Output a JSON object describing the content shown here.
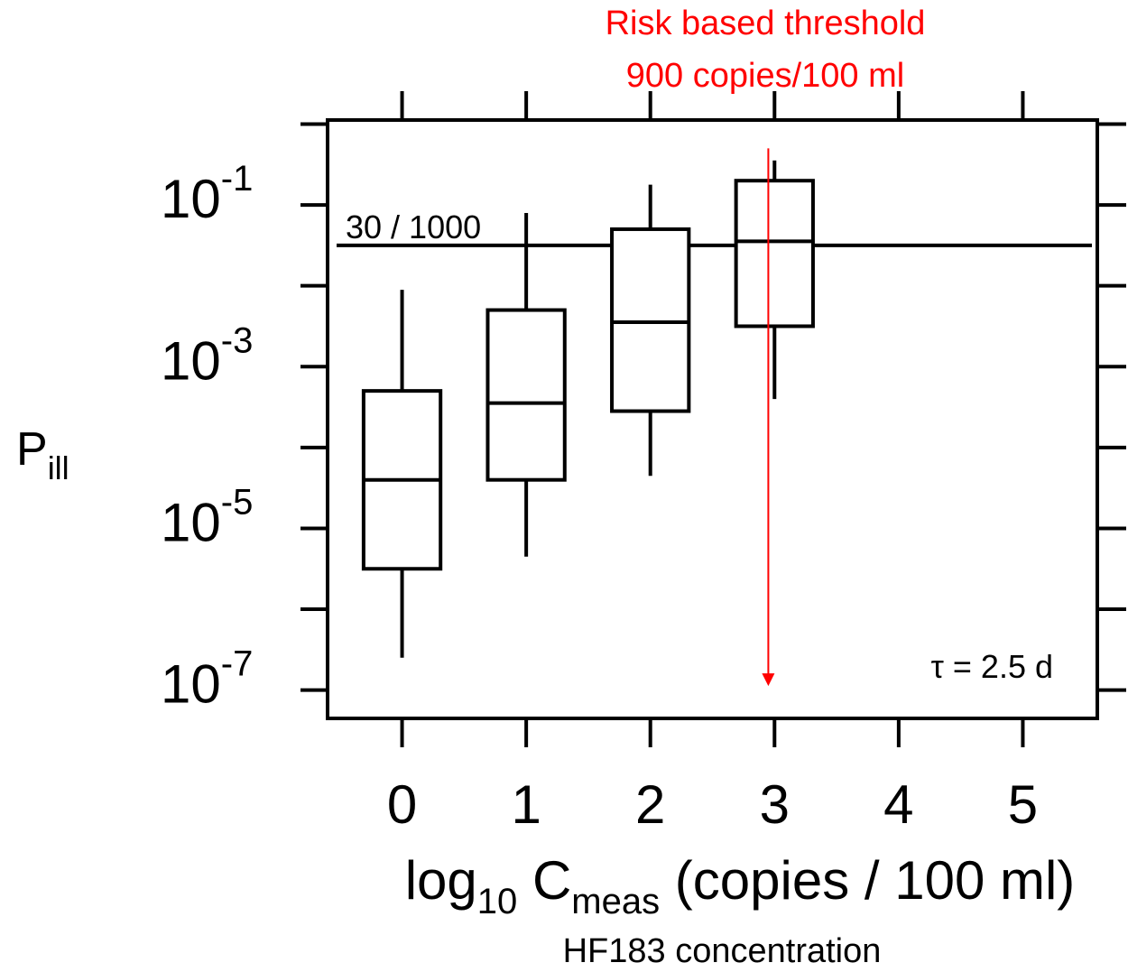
{
  "chart_data": {
    "type": "box",
    "xlim": [
      -0.6,
      5.6
    ],
    "ylim_log10": [
      -7.35,
      0.05
    ],
    "y_log_scale": true,
    "x_ticks": [
      0,
      1,
      2,
      3,
      4,
      5
    ],
    "y_major_ticks_log10": [
      -1,
      -3,
      -5,
      -7
    ],
    "y_minor_ticks_log10": [
      0,
      -2,
      -4,
      -6
    ],
    "y_tick_base": "10",
    "y_tick_exponents": [
      "-1",
      "-3",
      "-5",
      "-7"
    ],
    "boxes": [
      {
        "x": 0,
        "whisker_low": -6.6,
        "q1": -5.5,
        "median": -4.4,
        "q3": -3.3,
        "whisker_high": -2.05
      },
      {
        "x": 1,
        "whisker_low": -5.35,
        "q1": -4.4,
        "median": -3.45,
        "q3": -2.3,
        "whisker_high": -1.1
      },
      {
        "x": 2,
        "whisker_low": -4.35,
        "q1": -3.55,
        "median": -2.45,
        "q3": -1.3,
        "whisker_high": -0.75
      },
      {
        "x": 3,
        "whisker_low": -3.4,
        "q1": -2.5,
        "median": -1.45,
        "q3": -0.7,
        "whisker_high": -0.45
      }
    ],
    "threshold_line": {
      "y_log10": -1.5,
      "label": "30 / 1000"
    },
    "risk_arrow": {
      "x": 2.95,
      "from_log10": -0.3,
      "to_log10": -6.95,
      "color": "#ff0000"
    },
    "xlabel": {
      "base": "log",
      "sub1": "10",
      "mid": " C",
      "sub2": "meas",
      "rest": " (copies / 100 ml)"
    },
    "xlabel2": "HF183 concentration",
    "ylabel": {
      "base": "P",
      "sub": "ill"
    },
    "annotation_tau": "τ = 2.5 d",
    "risk_title_line1": "Risk based threshold",
    "risk_title_line2": "900 copies/100 ml",
    "risk_color": "#ff0000"
  }
}
